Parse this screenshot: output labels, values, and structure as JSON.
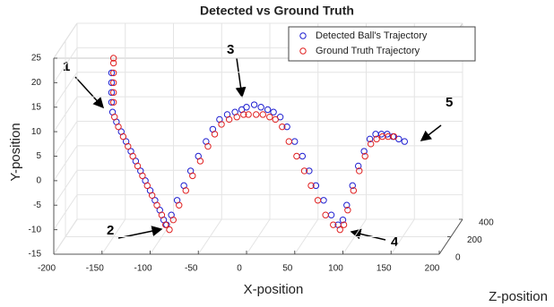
{
  "chart_data": {
    "type": "scatter3d",
    "title": "Detected vs Ground Truth",
    "xlabel": "X-position",
    "ylabel": "Y-position",
    "zlabel": "Z-position",
    "xlim": [
      -200,
      200
    ],
    "xticks": [
      -200,
      -150,
      -100,
      -50,
      0,
      50,
      100,
      150,
      200
    ],
    "ylim": [
      -15,
      25
    ],
    "yticks": [
      -15,
      -10,
      -5,
      0,
      5,
      10,
      15,
      20,
      25
    ],
    "zlim": [
      0,
      400
    ],
    "zticks": [
      0,
      200,
      400
    ],
    "grid": true,
    "legend": "northeast",
    "annotations": [
      "1",
      "2",
      "3",
      "4",
      "5"
    ],
    "series": [
      {
        "name": "Detected Ball's Trajectory",
        "color": "#1f1fd0",
        "x": [
          -140,
          -140,
          -140,
          -140,
          -139,
          -135,
          -130,
          -125,
          -120,
          -115,
          -110,
          -105,
          -100,
          -95,
          -90,
          -86,
          -83,
          -78,
          -72,
          -65,
          -58,
          -50,
          -42,
          -35,
          -28,
          -20,
          -12,
          -5,
          0,
          8,
          15,
          22,
          28,
          35,
          42,
          50,
          58,
          65,
          72,
          80,
          88,
          95,
          100,
          104,
          110,
          116,
          122,
          128,
          134,
          140,
          146,
          152,
          158,
          164
        ],
        "values": [
          22,
          20,
          18,
          16,
          14,
          12,
          10,
          8,
          6,
          4,
          2,
          0,
          -2,
          -4,
          -6,
          -8,
          -9,
          -7,
          -4,
          -1,
          2,
          5,
          8,
          10.5,
          12.5,
          13.5,
          14,
          14.5,
          15,
          15.5,
          15,
          14.5,
          14,
          13,
          11,
          8,
          5,
          2,
          -1,
          -4,
          -7,
          -9,
          -8,
          -5,
          -1,
          3,
          6,
          8.5,
          9.5,
          9.5,
          9.5,
          9,
          8.5,
          8
        ]
      },
      {
        "name": "Ground Truth Trajectory",
        "color": "#e02020",
        "x": [
          -138,
          -138,
          -138,
          -138,
          -138,
          -138,
          -137,
          -133,
          -128,
          -123,
          -118,
          -113,
          -108,
          -103,
          -98,
          -93,
          -88,
          -84,
          -80,
          -76,
          -70,
          -63,
          -56,
          -48,
          -40,
          -33,
          -26,
          -18,
          -10,
          -3,
          2,
          10,
          17,
          24,
          30,
          37,
          44,
          52,
          60,
          67,
          74,
          82,
          90,
          97,
          101,
          105,
          111,
          117,
          123,
          129,
          135,
          141,
          147,
          153
        ],
        "values": [
          25,
          24,
          22,
          20,
          18,
          16,
          13,
          11,
          9,
          7,
          5,
          3,
          1,
          -1,
          -3,
          -5,
          -7,
          -9,
          -10,
          -8,
          -5,
          -2,
          1,
          4,
          7,
          9.5,
          11.5,
          12.5,
          13,
          13.5,
          13.5,
          13.5,
          13.5,
          13,
          12.5,
          11,
          8,
          5,
          2,
          -1,
          -4,
          -7,
          -9,
          -10,
          -9,
          -6,
          -2,
          2,
          5,
          7.5,
          8.5,
          9,
          9,
          9
        ]
      }
    ]
  }
}
